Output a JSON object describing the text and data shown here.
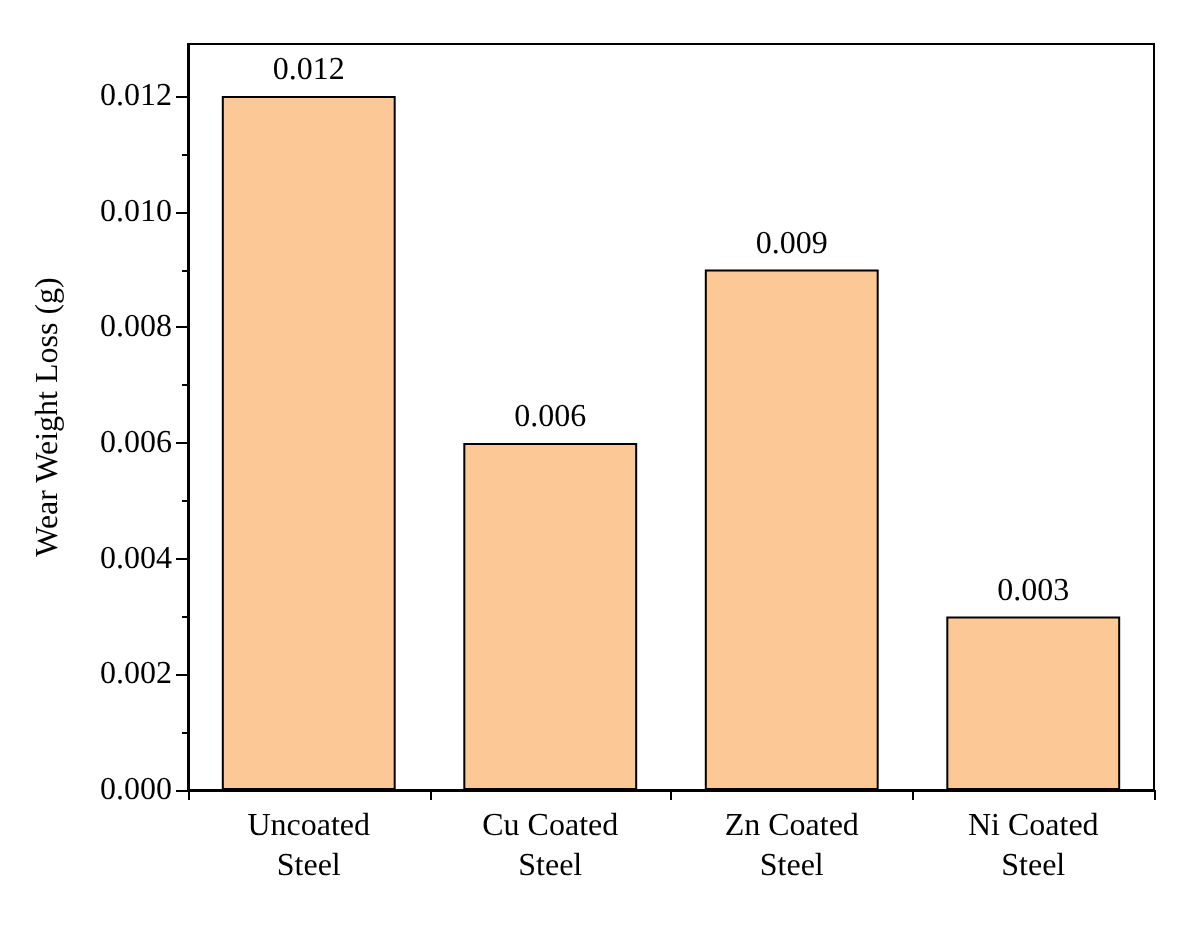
{
  "chart_data": {
    "type": "bar",
    "ylabel": "Wear Weight Loss (g)",
    "categories": [
      "Uncoated\nSteel",
      "Cu Coated\nSteel",
      "Zn Coated\nSteel",
      "Ni Coated\nSteel"
    ],
    "values": [
      0.012,
      0.006,
      0.009,
      0.003
    ],
    "color": "#fbc896",
    "data_labels": true,
    "ylim": [
      0,
      0.0129
    ],
    "yticks": [
      {
        "value": 0,
        "label": "0.000"
      },
      {
        "value": 0.002,
        "label": "0.002"
      },
      {
        "value": 0.004,
        "label": "0.004"
      },
      {
        "value": 0.006,
        "label": "0.006"
      },
      {
        "value": 0.008,
        "label": "0.008"
      },
      {
        "value": 0.01,
        "label": "0.010"
      },
      {
        "value": 0.012,
        "label": "0.012"
      }
    ],
    "grid": false
  }
}
